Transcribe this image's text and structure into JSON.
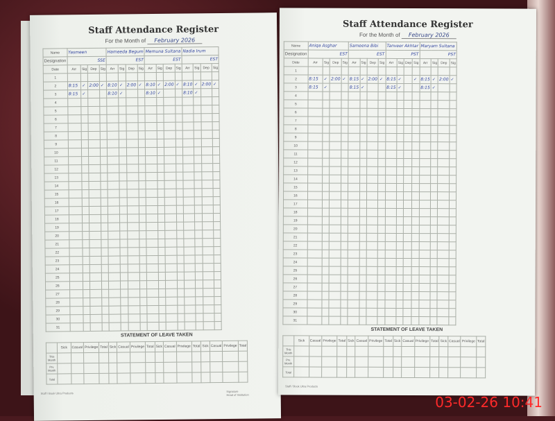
{
  "title": "Staff Attendance Register",
  "month_label": "For the Month of",
  "month_value": "February 2026",
  "labels": {
    "name": "Name",
    "designation": "Designation",
    "date": "Date",
    "cols": [
      "Arr",
      "Sig",
      "Dep",
      "Sig"
    ]
  },
  "leave": {
    "title": "STATEMENT OF LEAVE TAKEN",
    "cols": [
      "Sick",
      "Casual",
      "Privilege",
      "Total"
    ],
    "rows": [
      "This Month",
      "Prv. Month",
      "Total"
    ]
  },
  "footer": {
    "left": "Staff / Book  Ultra Products",
    "signature": "Signature",
    "head": "Head of Institution"
  },
  "pages": [
    {
      "staff": [
        {
          "name": "Yasmeen",
          "designation": "SSE",
          "entries": {
            "2": [
              "8:15",
              "✓",
              "2:00",
              "✓"
            ],
            "3": [
              "8:15",
              "✓",
              "",
              ""
            ]
          }
        },
        {
          "name": "Hameeda Begum",
          "designation": "EST",
          "entries": {
            "2": [
              "8:10",
              "✓",
              "2:00",
              "✓"
            ],
            "3": [
              "8:10",
              "✓",
              "",
              ""
            ]
          }
        },
        {
          "name": "Memuna Sultana",
          "designation": "EST",
          "entries": {
            "2": [
              "8:10",
              "✓",
              "2:00",
              "✓"
            ],
            "3": [
              "8:10",
              "✓",
              "",
              ""
            ]
          }
        },
        {
          "name": "Nadia Irum",
          "designation": "EST",
          "entries": {
            "2": [
              "8:10",
              "✓",
              "2:00",
              "✓"
            ],
            "3": [
              "8:10",
              "✓",
              "",
              ""
            ]
          }
        }
      ]
    },
    {
      "staff": [
        {
          "name": "Aniqa Asghar",
          "designation": "EST",
          "entries": {
            "2": [
              "8:15",
              "✓",
              "2:00",
              "✓"
            ],
            "3": [
              "8:15",
              "✓",
              "",
              ""
            ]
          }
        },
        {
          "name": "Sameena Bibi",
          "designation": "EST",
          "entries": {
            "2": [
              "8:15",
              "✓",
              "2:00",
              "✓"
            ],
            "3": [
              "8:15",
              "✓",
              "",
              ""
            ]
          }
        },
        {
          "name": "Tanveer Akhtar",
          "designation": "PST",
          "entries": {
            "2": [
              "8:15",
              "✓",
              "",
              "✓"
            ],
            "3": [
              "8:15",
              "✓",
              "",
              ""
            ]
          }
        },
        {
          "name": "Maryam Sultana",
          "designation": "PST",
          "entries": {
            "2": [
              "8:15",
              "✓",
              "2:00",
              "✓"
            ],
            "3": [
              "8:15",
              "✓",
              "",
              ""
            ]
          }
        }
      ]
    }
  ],
  "days": 31,
  "timestamp": "03-02-26  10:41"
}
